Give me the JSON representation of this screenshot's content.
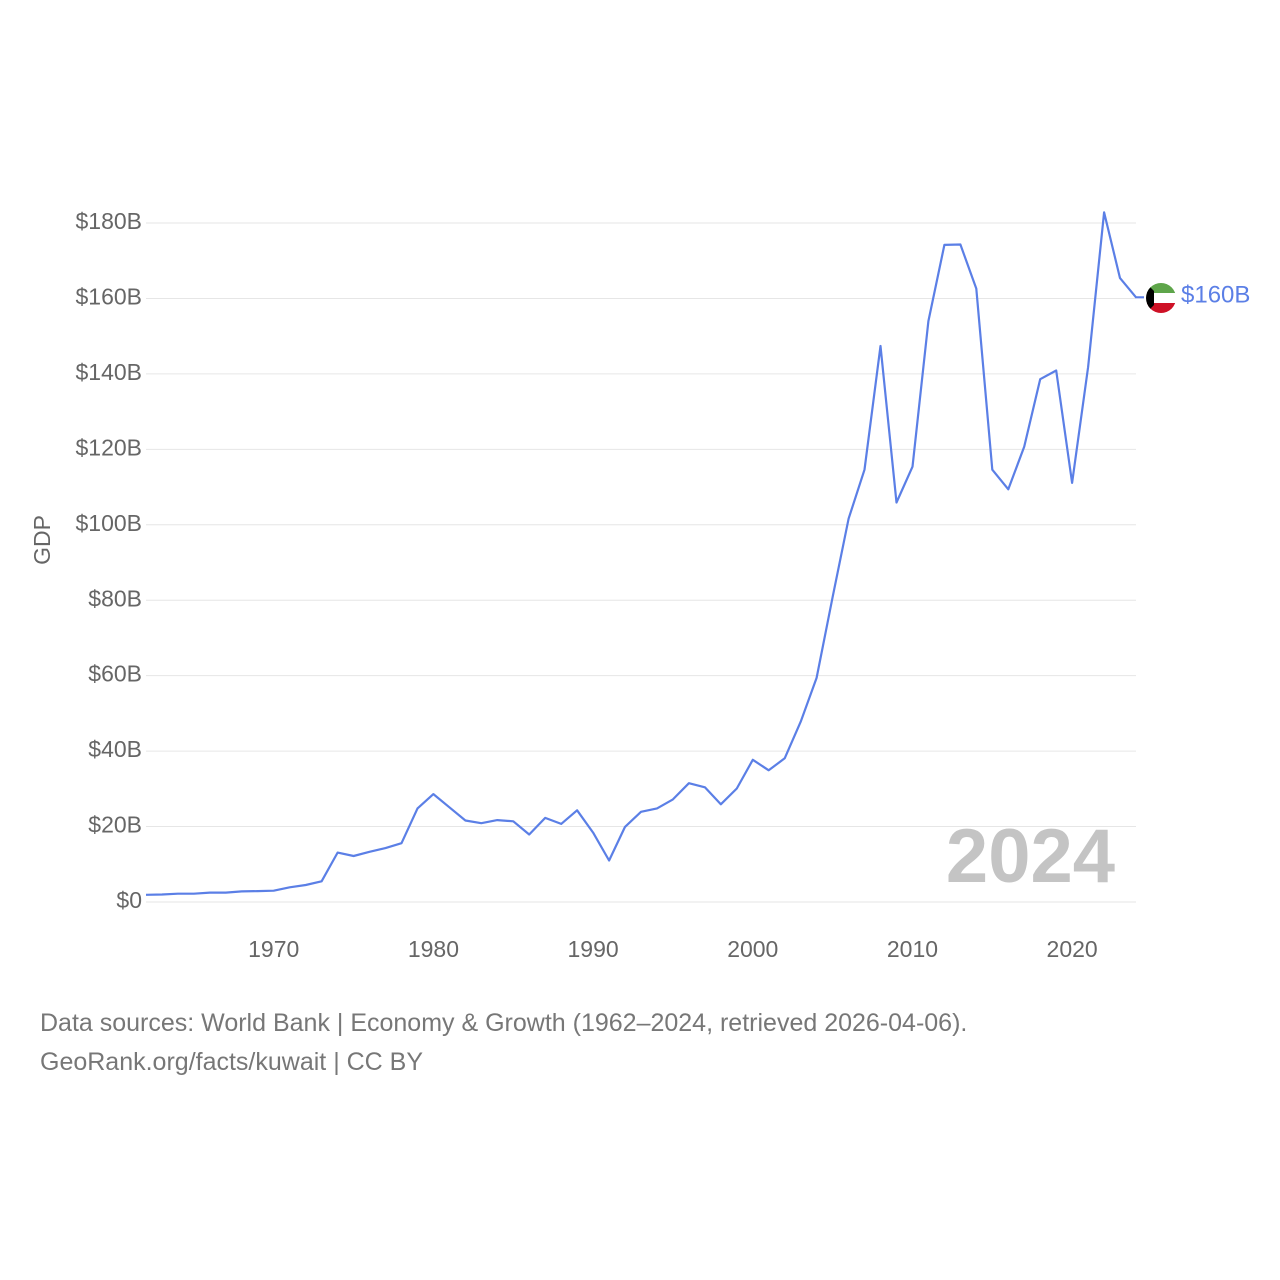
{
  "chart_data": {
    "type": "line",
    "ylabel": "GDP",
    "xlabel": "",
    "ylim": [
      0,
      180
    ],
    "y_unit": "billion USD",
    "yticks": [
      0,
      20,
      40,
      60,
      80,
      100,
      120,
      140,
      160,
      180
    ],
    "ytick_labels": [
      "$0",
      "$20B",
      "$40B",
      "$60B",
      "$80B",
      "$100B",
      "$120B",
      "$140B",
      "$160B",
      "$180B"
    ],
    "xlim": [
      1962,
      2024
    ],
    "xticks": [
      1970,
      1980,
      1990,
      2000,
      2010,
      2020
    ],
    "xtick_labels": [
      "1970",
      "1980",
      "1990",
      "2000",
      "2010",
      "2020"
    ],
    "grid": true,
    "current_year_label": "2024",
    "series": [
      {
        "name": "Kuwait",
        "color": "#5b7fe6",
        "end_label": "$160B",
        "x": [
          1962,
          1963,
          1964,
          1965,
          1966,
          1967,
          1968,
          1969,
          1970,
          1971,
          1972,
          1973,
          1974,
          1975,
          1976,
          1977,
          1978,
          1979,
          1980,
          1981,
          1982,
          1983,
          1984,
          1985,
          1986,
          1987,
          1988,
          1989,
          1990,
          1991,
          1992,
          1993,
          1994,
          1995,
          1996,
          1997,
          1998,
          1999,
          2000,
          2001,
          2002,
          2003,
          2004,
          2005,
          2006,
          2007,
          2008,
          2009,
          2010,
          2011,
          2012,
          2013,
          2014,
          2015,
          2016,
          2017,
          2018,
          2019,
          2020,
          2021,
          2022,
          2023,
          2024
        ],
        "values": [
          1.9,
          2.0,
          2.2,
          2.2,
          2.5,
          2.5,
          2.8,
          2.9,
          3.0,
          3.9,
          4.5,
          5.5,
          13.1,
          12.2,
          13.3,
          14.3,
          15.6,
          24.8,
          28.6,
          25.1,
          21.6,
          20.9,
          21.7,
          21.4,
          17.9,
          22.3,
          20.7,
          24.3,
          18.4,
          11.0,
          19.9,
          23.9,
          24.8,
          27.2,
          31.5,
          30.4,
          25.9,
          30.1,
          37.7,
          34.9,
          38.1,
          47.8,
          59.4,
          80.8,
          101.6,
          114.6,
          147.4,
          105.9,
          115.4,
          154.0,
          174.2,
          174.3,
          162.6,
          114.6,
          109.4,
          120.7,
          138.6,
          140.9,
          111.1,
          141.8,
          182.8,
          165.4,
          160.3
        ]
      }
    ]
  },
  "flag": {
    "name": "kuwait-flag",
    "colors": [
      "#5ea54a",
      "#ffffff",
      "#ce1126",
      "#000000"
    ]
  },
  "footer": {
    "line1": "Data sources: World Bank | Economy & Growth (1962–2024, retrieved 2026-04-06).",
    "line2": "GeoRank.org/facts/kuwait | CC BY"
  }
}
